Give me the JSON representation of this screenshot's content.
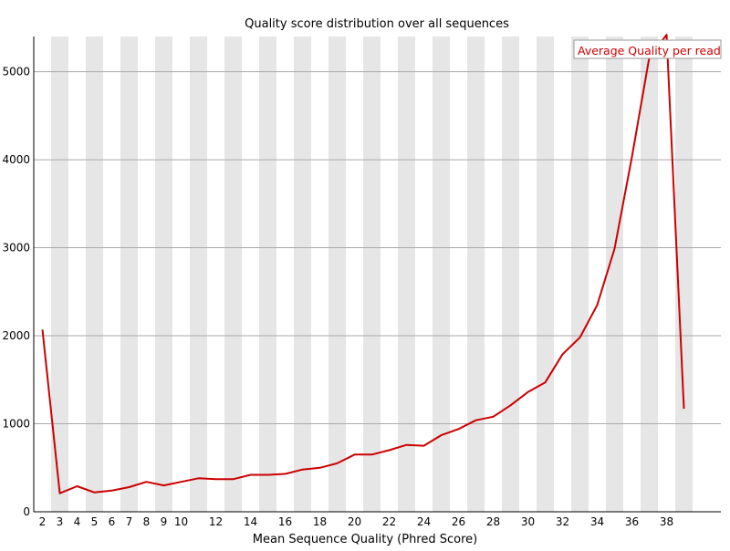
{
  "chart_data": {
    "type": "line",
    "title": "Quality score distribution over all sequences",
    "xlabel": "Mean Sequence Quality (Phred Score)",
    "ylabel": "",
    "xlim": [
      1.5,
      39.5
    ],
    "ylim": [
      0,
      5400
    ],
    "x_ticks": [
      2,
      3,
      4,
      5,
      6,
      7,
      8,
      9,
      10,
      12,
      14,
      16,
      18,
      20,
      22,
      24,
      26,
      28,
      30,
      32,
      34,
      36,
      38
    ],
    "y_ticks": [
      0,
      1000,
      2000,
      3000,
      4000,
      5000
    ],
    "grid": true,
    "legend_position": "top-right",
    "colors": {
      "series": "#cc0000",
      "band": "#e6e6e6",
      "grid": "#aaaaaa",
      "axis": "#000000"
    },
    "series": [
      {
        "name": "Average Quality per read",
        "x": [
          2,
          3,
          4,
          5,
          6,
          7,
          8,
          9,
          10,
          11,
          12,
          13,
          14,
          15,
          16,
          17,
          18,
          19,
          20,
          21,
          22,
          23,
          24,
          25,
          26,
          27,
          28,
          29,
          30,
          31,
          32,
          33,
          34,
          35,
          36,
          37,
          38,
          39
        ],
        "values": [
          2070,
          210,
          290,
          220,
          240,
          280,
          340,
          300,
          340,
          380,
          370,
          370,
          420,
          420,
          430,
          480,
          500,
          550,
          650,
          650,
          700,
          760,
          750,
          870,
          940,
          1040,
          1080,
          1210,
          1360,
          1470,
          1790,
          1980,
          2350,
          2990,
          4030,
          5160,
          5420,
          1170
        ]
      }
    ]
  }
}
